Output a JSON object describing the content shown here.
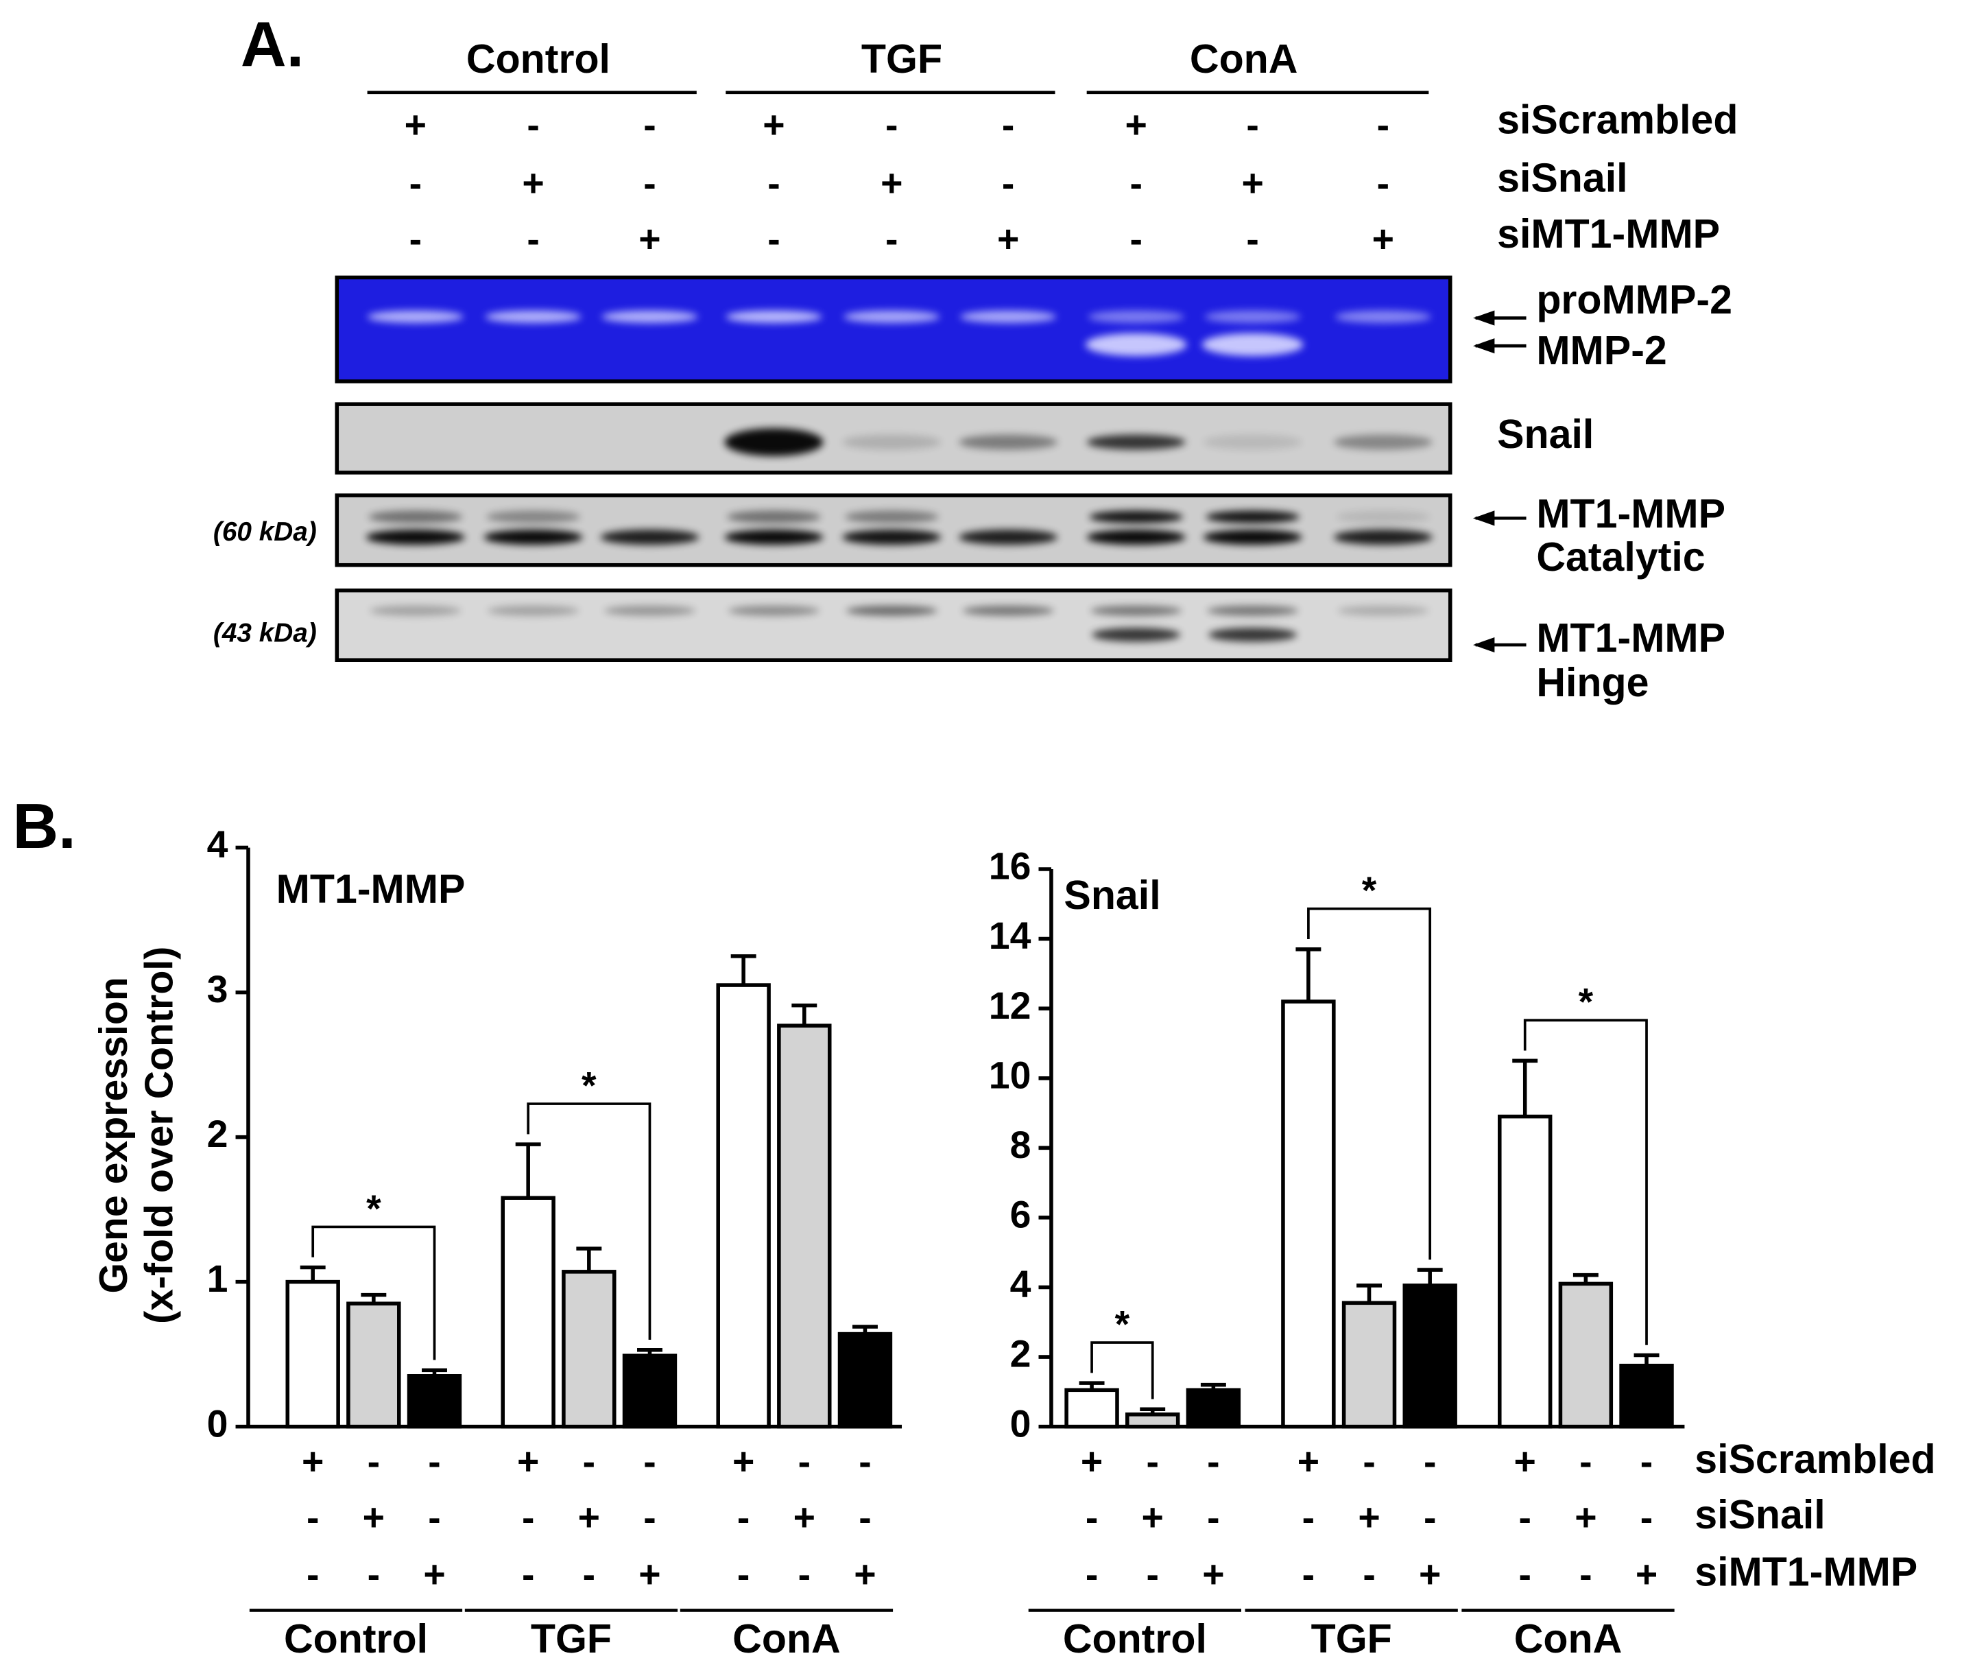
{
  "markers": {
    "plus": "+",
    "minus": "-"
  },
  "panel_a": {
    "label": "A.",
    "groups": [
      "Control",
      "TGF",
      "ConA"
    ],
    "rows": [
      "siScrambled",
      "siSnail",
      "siMT1-MMP"
    ],
    "band_labels": {
      "pro_mmp2": "proMMP-2",
      "mmp2": "MMP-2",
      "snail": "Snail",
      "catalytic_1": "MT1-MMP",
      "catalytic_2": "Catalytic",
      "hinge_1": "MT1-MMP",
      "hinge_2": "Hinge",
      "kda_60": "(60 kDa)",
      "kda_43": "(43 kDa)"
    }
  },
  "panel_b_label": "B.",
  "chart_data": [
    {
      "type": "bar",
      "title": "MT1-MMP",
      "ylabel": [
        "Gene expression",
        "(x-fold over Control)"
      ],
      "categories": [
        "Control",
        "TGF",
        "ConA"
      ],
      "series": [
        {
          "color": "#ffffff",
          "values": [
            1.0,
            1.58,
            3.05
          ],
          "errors": [
            0.1,
            0.37,
            0.2
          ]
        },
        {
          "color": "#d3d3d3",
          "values": [
            0.85,
            1.07,
            2.77
          ],
          "errors": [
            0.06,
            0.16,
            0.14
          ]
        },
        {
          "color": "#000000",
          "values": [
            0.35,
            0.49,
            0.64
          ],
          "errors": [
            0.04,
            0.04,
            0.05
          ]
        }
      ],
      "ylim": [
        0,
        4
      ],
      "yticks": [
        0,
        1,
        2,
        3,
        4
      ],
      "annotations": [
        {
          "text": "*",
          "category": 0,
          "series": [
            0,
            2
          ]
        },
        {
          "text": "*",
          "category": 1,
          "series": [
            0,
            2
          ]
        }
      ]
    },
    {
      "type": "bar",
      "title": "Snail",
      "categories": [
        "Control",
        "TGF",
        "ConA"
      ],
      "series": [
        {
          "name": "siScrambled",
          "color": "#ffffff",
          "values": [
            1.05,
            12.2,
            8.9
          ],
          "errors": [
            0.2,
            1.5,
            1.6
          ]
        },
        {
          "name": "siSnail",
          "color": "#d3d3d3",
          "values": [
            0.35,
            3.55,
            4.1
          ],
          "errors": [
            0.15,
            0.5,
            0.25
          ]
        },
        {
          "name": "siMT1-MMP",
          "color": "#000000",
          "values": [
            1.05,
            4.05,
            1.75
          ],
          "errors": [
            0.15,
            0.45,
            0.3
          ]
        }
      ],
      "ylim": [
        0,
        16
      ],
      "yticks": [
        0,
        2,
        4,
        6,
        8,
        10,
        12,
        14,
        16
      ],
      "annotations": [
        {
          "text": "*",
          "category": 0,
          "series": [
            0,
            1
          ]
        },
        {
          "text": "*",
          "category": 1,
          "series": [
            0,
            2
          ]
        },
        {
          "text": "*",
          "category": 2,
          "series": [
            0,
            2
          ]
        }
      ]
    }
  ]
}
